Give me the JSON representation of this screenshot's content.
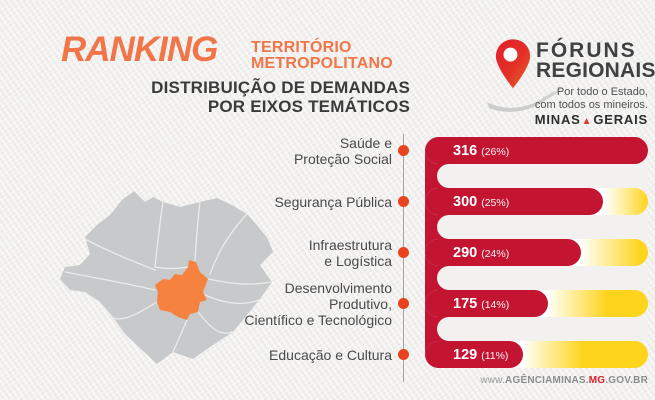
{
  "header": {
    "title": "RANKING",
    "territory_line1": "TERRITÓRIO",
    "territory_line2": "METROPOLITANO",
    "subtitle_line1": "DISTRIBUIÇÃO DE DEMANDAS",
    "subtitle_line2": "POR EIXOS TEMÁTICOS"
  },
  "logo": {
    "name_line1": "FÓRUNS",
    "name_line2": "REGIONAIS",
    "tagline_line1": "Por todo o Estado,",
    "tagline_line2": "com todos os mineiros.",
    "brand_left": "MINAS",
    "brand_right": "GERAIS"
  },
  "footer": {
    "url_prefix": "www.",
    "url_site": "AGÊNCIAMINAS.",
    "url_mg": "MG",
    "url_suffix": ".GOV.BR"
  },
  "chart_data": {
    "type": "bar",
    "orientation": "horizontal",
    "title": "Distribuição de Demandas por Eixos Temáticos",
    "subtitle": "Ranking Território Metropolitano",
    "categories": [
      "Saúde e Proteção Social",
      "Segurança Pública",
      "Infraestrutura e Logística",
      "Desenvolvimento Produtivo, Científico e Tecnológico",
      "Educação e Cultura"
    ],
    "category_lines": [
      [
        "Saúde e",
        "Proteção Social"
      ],
      [
        "Segurança Pública"
      ],
      [
        "Infraestrutura",
        "e Logística"
      ],
      [
        "Desenvolvimento",
        "Produtivo,",
        "Científico e Tecnológico"
      ],
      [
        "Educação e Cultura"
      ]
    ],
    "values": [
      316,
      300,
      290,
      175,
      129
    ],
    "percent_labels": [
      "(26%)",
      "(25%)",
      "(24%)",
      "(14%)",
      "(11%)"
    ],
    "fill_fractions": [
      1.0,
      0.8,
      0.7,
      0.55,
      0.44
    ],
    "value_axis_hidden": true,
    "grid": false,
    "legend": false,
    "colors": {
      "bar_fill": "#c31432",
      "bar_track_yellow": "#ffd41c",
      "bar_track_glow": "#fff7cf",
      "dot": "#e8431d",
      "axis_line": "#a3a3a3",
      "label_text": "#4a4a4c",
      "value_text": "#ffffff",
      "accent_orange": "#f0764a",
      "map_region": "#f6823f",
      "map_base": "#c7c9cb"
    }
  }
}
